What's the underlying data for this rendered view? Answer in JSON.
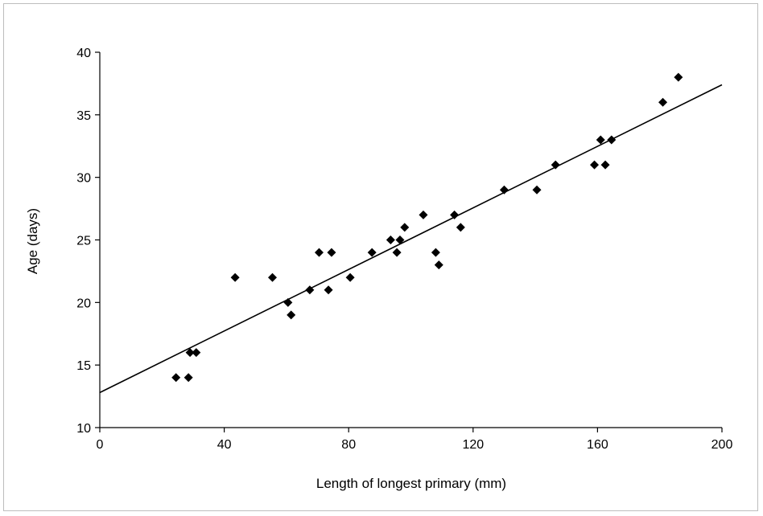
{
  "chart_data": {
    "type": "scatter",
    "title": "",
    "xlabel": "Length of longest primary (mm)",
    "ylabel": "Age (days)",
    "xlim": [
      0,
      200
    ],
    "ylim": [
      10,
      40
    ],
    "xticks": [
      0,
      40,
      80,
      120,
      160,
      200
    ],
    "yticks": [
      10,
      15,
      20,
      25,
      30,
      35,
      40
    ],
    "grid": false,
    "legend": "none",
    "marker": "diamond",
    "marker_color": "#000000",
    "series": [
      {
        "points": [
          [
            24.5,
            14
          ],
          [
            28.5,
            14
          ],
          [
            29,
            16
          ],
          [
            31,
            16
          ],
          [
            43.5,
            22
          ],
          [
            55.5,
            22
          ],
          [
            60.5,
            20
          ],
          [
            61.5,
            19
          ],
          [
            67.5,
            21
          ],
          [
            70.5,
            24
          ],
          [
            73.5,
            21
          ],
          [
            74.5,
            24
          ],
          [
            80.5,
            22
          ],
          [
            87.5,
            24
          ],
          [
            93.5,
            25
          ],
          [
            95.5,
            24
          ],
          [
            96.5,
            25
          ],
          [
            98,
            26
          ],
          [
            104,
            27
          ],
          [
            108,
            24
          ],
          [
            109,
            23
          ],
          [
            114,
            27
          ],
          [
            116,
            26
          ],
          [
            130,
            29
          ],
          [
            140.5,
            29
          ],
          [
            146.5,
            31
          ],
          [
            159,
            31
          ],
          [
            161,
            33
          ],
          [
            162.5,
            31
          ],
          [
            164.5,
            33
          ],
          [
            181,
            36
          ],
          [
            186,
            38
          ]
        ]
      }
    ],
    "trendline": {
      "type": "linear",
      "x": [
        0,
        200
      ],
      "y": [
        12.8,
        37.4
      ]
    }
  }
}
